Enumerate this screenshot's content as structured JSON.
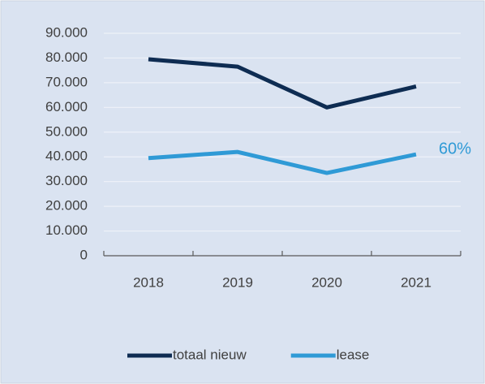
{
  "chart_data": {
    "type": "line",
    "categories": [
      "2018",
      "2019",
      "2020",
      "2021"
    ],
    "series": [
      {
        "name": "totaal nieuw",
        "color": "#0e2c52",
        "values": [
          79500,
          76500,
          60000,
          68500
        ]
      },
      {
        "name": "lease",
        "color": "#2f9ad6",
        "values": [
          39500,
          42000,
          33500,
          41000
        ]
      }
    ],
    "annotation": "60%",
    "ylim": [
      0,
      90000
    ],
    "yticks": [
      0,
      {
        "value": 10000,
        "label": "10.000"
      },
      {
        "value": 20000,
        "label": "20.000"
      },
      {
        "value": 30000,
        "label": "30.000"
      },
      {
        "value": 40000,
        "label": "40.000"
      },
      {
        "value": 50000,
        "label": "50.000"
      },
      {
        "value": 60000,
        "label": "60.000"
      },
      {
        "value": 70000,
        "label": "70.000"
      },
      {
        "value": 80000,
        "label": "80.000"
      },
      {
        "value": 90000,
        "label": "90.000"
      }
    ],
    "grid": true,
    "legend": "bottom"
  }
}
